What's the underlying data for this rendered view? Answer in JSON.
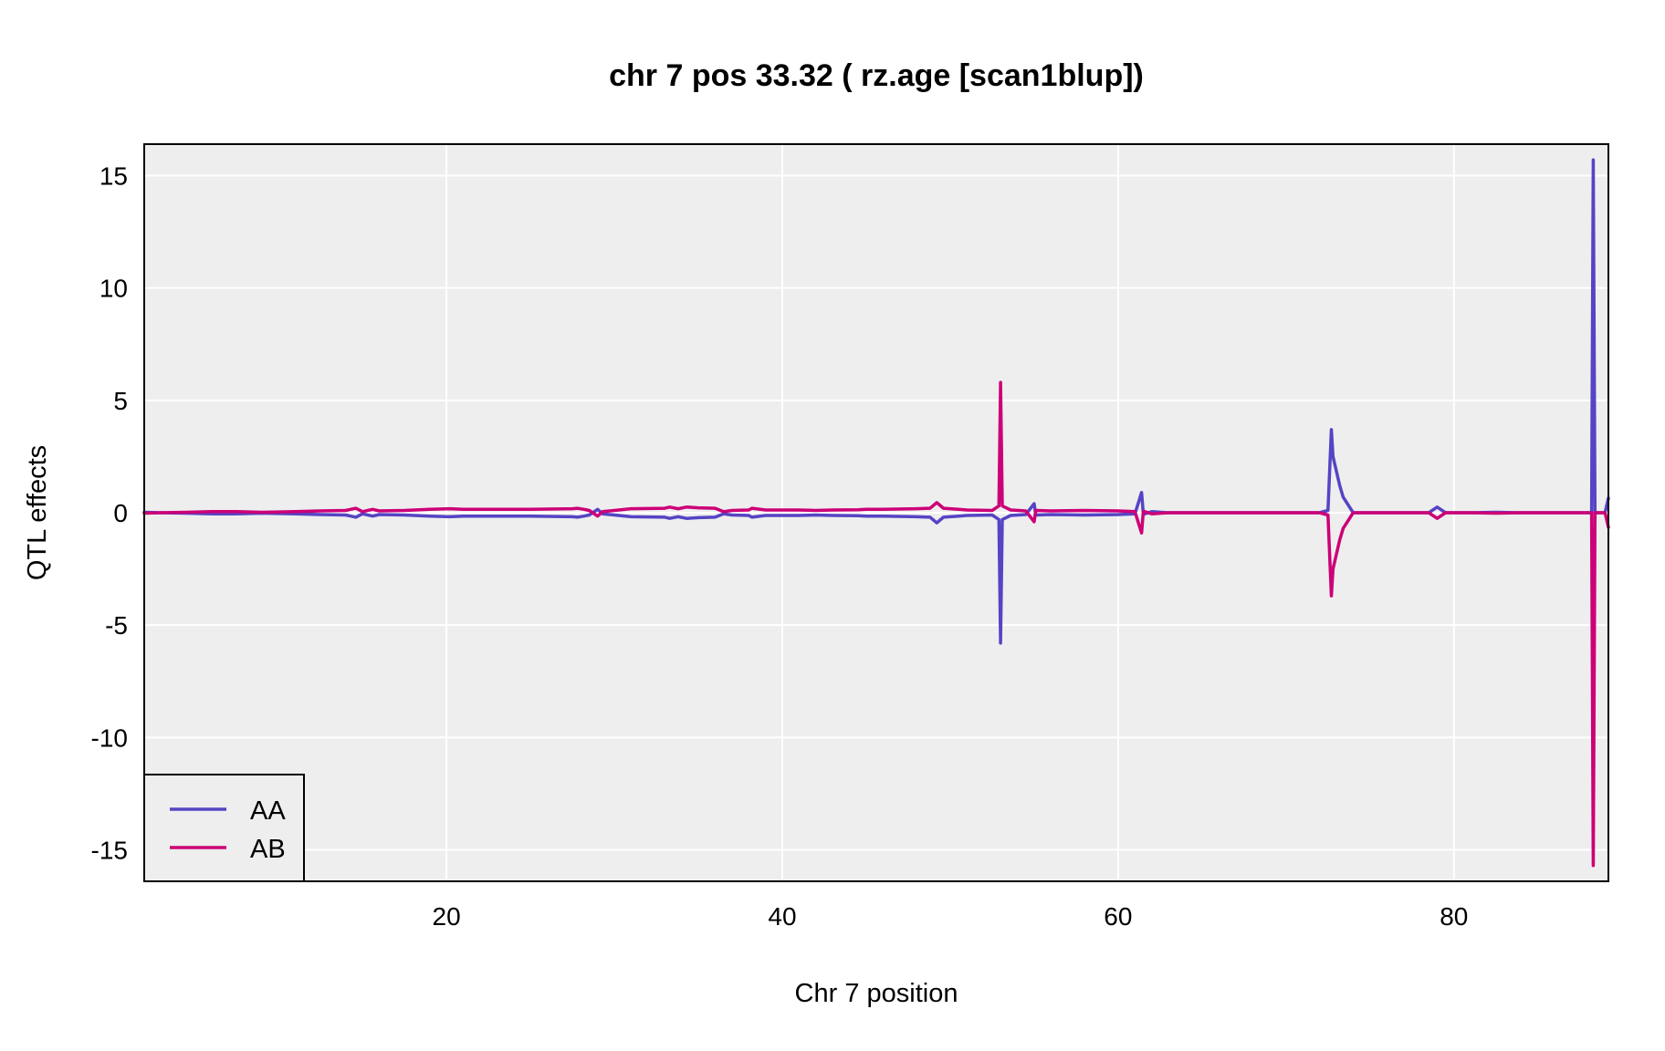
{
  "chart_data": {
    "type": "line",
    "title": "chr 7 pos 33.32 ( rz.age  [scan1blup])",
    "xlabel": "Chr 7 position",
    "ylabel": "QTL effects",
    "xlim": [
      2.0,
      89.2
    ],
    "ylim": [
      -16.4,
      16.4
    ],
    "xticks": [
      20,
      40,
      60,
      80
    ],
    "yticks": [
      15,
      10,
      5,
      0,
      -5,
      -10,
      -15
    ],
    "grid": true,
    "legend_position": "bottom-left",
    "background": "#eeeeee",
    "series": [
      {
        "name": "AA",
        "color": "#5544c4",
        "x": [
          2.0,
          3.0,
          4.5,
          6.0,
          7.5,
          9.0,
          11.0,
          12.5,
          14.0,
          14.6,
          15.0,
          15.6,
          16.0,
          17.5,
          19.0,
          20.2,
          21.0,
          22.5,
          25.0,
          27.5,
          27.8,
          28.2,
          28.5,
          29.0,
          29.3,
          30.0,
          31.0,
          33.0,
          33.3,
          33.8,
          34.3,
          35.0,
          36.0,
          36.5,
          37.0,
          38.0,
          38.2,
          39.0,
          41.0,
          42.0,
          43.0,
          44.5,
          45.0,
          46.0,
          48.0,
          48.8,
          49.2,
          49.6,
          50.5,
          51.0,
          52.5,
          52.9,
          53.0,
          53.1,
          53.6,
          54.5,
          55.0,
          55.1,
          56.0,
          58.0,
          60.0,
          61.0,
          61.4,
          61.5,
          61.6,
          62.0,
          63.0,
          64.0,
          66.0,
          68.0,
          70.0,
          72.0,
          72.5,
          72.7,
          72.8,
          73.2,
          73.4,
          74.0,
          76.0,
          78.5,
          79.0,
          79.5,
          81.0,
          82.5,
          84.0,
          86.0,
          87.5,
          88.2,
          88.3,
          88.4,
          88.6,
          89.0,
          89.2
        ],
        "values": [
          0.02,
          0.0,
          -0.02,
          -0.05,
          -0.05,
          -0.02,
          -0.05,
          -0.08,
          -0.1,
          -0.2,
          -0.05,
          -0.15,
          -0.08,
          -0.1,
          -0.15,
          -0.18,
          -0.15,
          -0.15,
          -0.15,
          -0.18,
          -0.2,
          -0.15,
          -0.1,
          0.15,
          -0.05,
          -0.1,
          -0.18,
          -0.2,
          -0.25,
          -0.18,
          -0.25,
          -0.22,
          -0.2,
          -0.05,
          -0.1,
          -0.12,
          -0.2,
          -0.12,
          -0.12,
          -0.1,
          -0.12,
          -0.13,
          -0.15,
          -0.15,
          -0.18,
          -0.2,
          -0.45,
          -0.2,
          -0.15,
          -0.12,
          -0.1,
          -0.3,
          -5.8,
          -0.3,
          -0.12,
          -0.08,
          0.4,
          -0.1,
          -0.08,
          -0.1,
          -0.08,
          -0.05,
          0.9,
          -0.05,
          -0.05,
          0.05,
          0.0,
          0.0,
          0.0,
          0.0,
          0.0,
          0.0,
          0.1,
          3.7,
          2.5,
          1.2,
          0.7,
          0.0,
          0.0,
          0.0,
          0.25,
          0.0,
          0.0,
          0.02,
          0.0,
          0.0,
          0.0,
          0.0,
          15.7,
          0.0,
          0.0,
          0.0,
          0.65
        ]
      },
      {
        "name": "AB",
        "color": "#cc0077",
        "x": [
          2.0,
          3.0,
          4.5,
          6.0,
          7.5,
          9.0,
          11.0,
          12.5,
          14.0,
          14.6,
          15.0,
          15.6,
          16.0,
          17.5,
          19.0,
          20.2,
          21.0,
          22.5,
          25.0,
          27.5,
          27.8,
          28.2,
          28.5,
          29.0,
          29.3,
          30.0,
          31.0,
          33.0,
          33.3,
          33.8,
          34.3,
          35.0,
          36.0,
          36.5,
          37.0,
          38.0,
          38.2,
          39.0,
          41.0,
          42.0,
          43.0,
          44.5,
          45.0,
          46.0,
          48.0,
          48.8,
          49.2,
          49.6,
          50.5,
          51.0,
          52.5,
          52.9,
          53.0,
          53.1,
          53.6,
          54.5,
          55.0,
          55.1,
          56.0,
          58.0,
          60.0,
          61.0,
          61.4,
          61.5,
          61.6,
          62.0,
          63.0,
          64.0,
          66.0,
          68.0,
          70.0,
          72.0,
          72.5,
          72.7,
          72.8,
          73.2,
          73.4,
          74.0,
          76.0,
          78.5,
          79.0,
          79.5,
          81.0,
          82.5,
          84.0,
          86.0,
          87.5,
          88.2,
          88.3,
          88.4,
          88.6,
          89.0,
          89.2
        ],
        "values": [
          -0.02,
          0.0,
          0.02,
          0.05,
          0.05,
          0.02,
          0.05,
          0.08,
          0.1,
          0.2,
          0.05,
          0.15,
          0.08,
          0.1,
          0.15,
          0.18,
          0.15,
          0.15,
          0.15,
          0.18,
          0.2,
          0.15,
          0.1,
          -0.15,
          0.05,
          0.1,
          0.18,
          0.2,
          0.25,
          0.18,
          0.25,
          0.22,
          0.2,
          0.05,
          0.1,
          0.12,
          0.2,
          0.12,
          0.12,
          0.1,
          0.12,
          0.13,
          0.15,
          0.15,
          0.18,
          0.2,
          0.45,
          0.2,
          0.15,
          0.12,
          0.1,
          0.3,
          5.8,
          0.3,
          0.12,
          0.08,
          -0.4,
          0.1,
          0.08,
          0.1,
          0.08,
          0.05,
          -0.9,
          0.05,
          0.05,
          -0.05,
          0.0,
          0.0,
          0.0,
          0.0,
          0.0,
          0.0,
          -0.1,
          -3.7,
          -2.5,
          -1.2,
          -0.7,
          0.0,
          0.0,
          0.0,
          -0.25,
          0.0,
          0.0,
          -0.02,
          0.0,
          0.0,
          0.0,
          0.0,
          -15.7,
          0.0,
          0.0,
          0.0,
          -0.65
        ]
      }
    ]
  }
}
